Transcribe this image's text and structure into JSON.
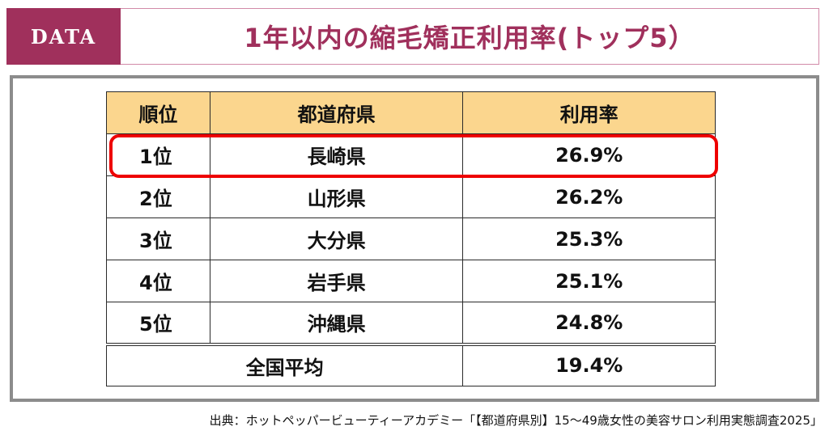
{
  "header": {
    "badge": "DATA",
    "title": "1年以内の縮毛矯正利用率(トップ5）"
  },
  "table": {
    "columns": [
      "順位",
      "都道府県",
      "利用率"
    ],
    "rows": [
      {
        "rank": "1位",
        "prefecture": "長崎県",
        "rate": "26.9%"
      },
      {
        "rank": "2位",
        "prefecture": "山形県",
        "rate": "26.2%"
      },
      {
        "rank": "3位",
        "prefecture": "大分県",
        "rate": "25.3%"
      },
      {
        "rank": "4位",
        "prefecture": "岩手県",
        "rate": "25.1%"
      },
      {
        "rank": "5位",
        "prefecture": "沖縄県",
        "rate": "24.8%"
      }
    ],
    "average": {
      "label": "全国平均",
      "rate": "19.4%"
    }
  },
  "source": "出典：ホットペッパービューティーアカデミー「【都道府県別】15～49歳女性の美容サロン利用実態調査2025」",
  "colors": {
    "accent": "#a0305c",
    "header_fill": "#fbd68e",
    "highlight": "#ee0000",
    "frame": "#8c8c8c"
  }
}
